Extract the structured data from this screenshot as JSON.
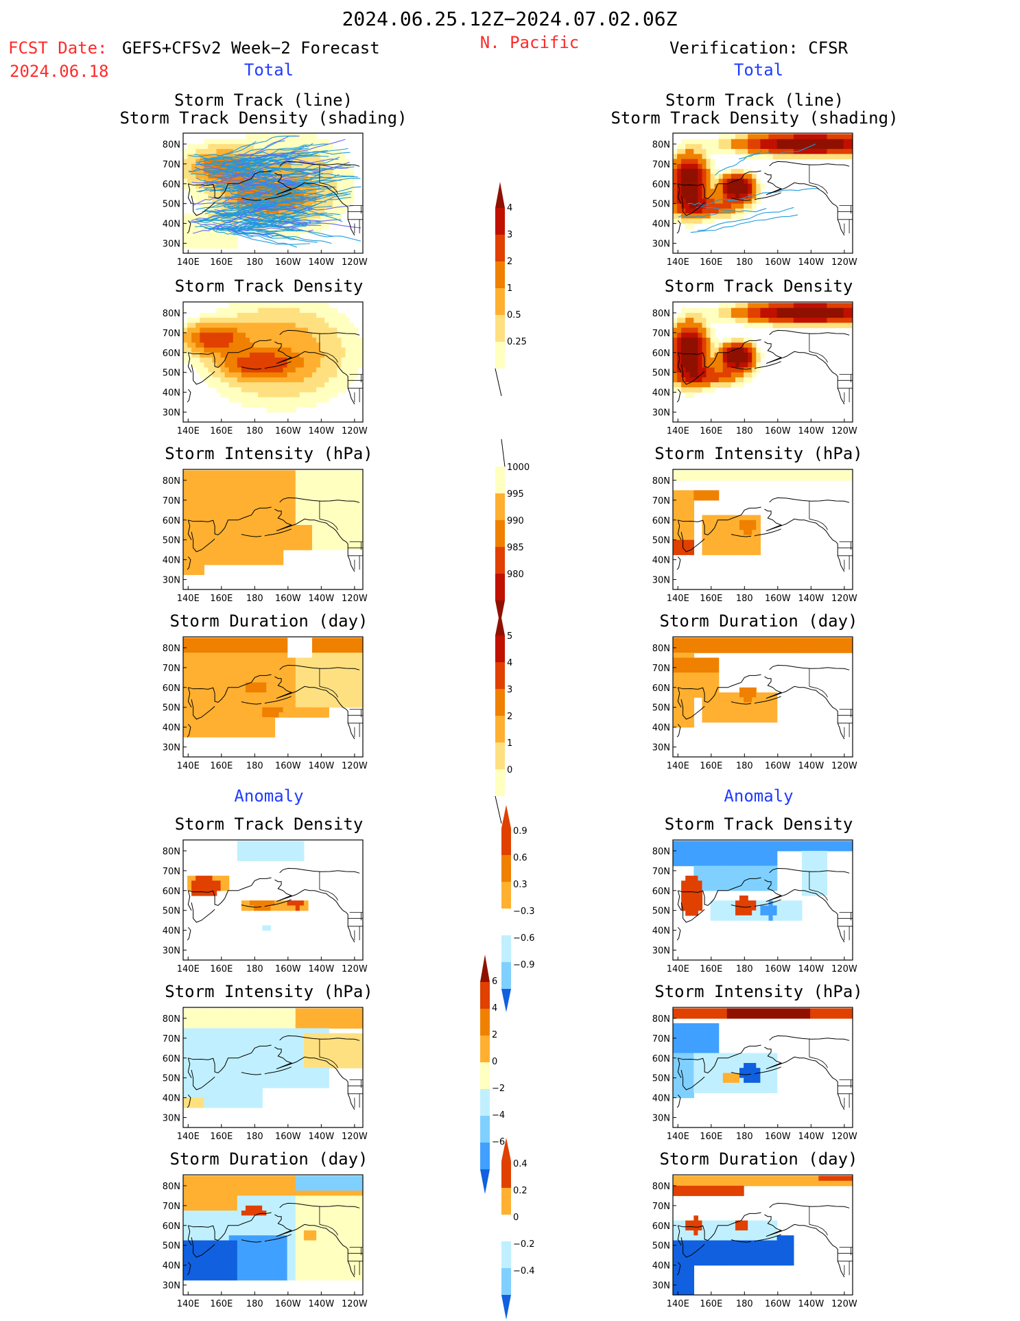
{
  "header": {
    "date_range": "2024.06.25.12Z−2024.07.02.06Z",
    "fcst_label": "FCST Date:",
    "model": "GEFS+CFSv2 Week−2 Forecast",
    "fcst_date": "2024.06.18",
    "region": "N. Pacific",
    "verification": "Verification: CFSR"
  },
  "sections": {
    "total": "Total",
    "anomaly": "Anomaly"
  },
  "axes": {
    "lat_ticks": [
      "80N",
      "70N",
      "60N",
      "50N",
      "40N",
      "30N"
    ],
    "lon_ticks": [
      "140E",
      "160E",
      "180",
      "160W",
      "140W",
      "120W"
    ]
  },
  "colors": {
    "pos": [
      "#ffffc0",
      "#ffe080",
      "#ffb030",
      "#f08000",
      "#e04000",
      "#c01000",
      "#901000"
    ],
    "neg": [
      "#c0f0ff",
      "#80d0ff",
      "#40a0ff",
      "#1060e0",
      "#0a3cc8"
    ],
    "track": "#1e9bdc",
    "track_alt": "#6464ff"
  },
  "chart_data": [
    {
      "type": "heatmap",
      "id": "fc-total-track",
      "title_line1": "Storm Track (line)",
      "title_line2": "Storm Track Density (shading)",
      "has_tracks": true
    },
    {
      "type": "heatmap",
      "id": "ver-total-track",
      "title_line1": "Storm Track (line)",
      "title_line2": "Storm Track Density (shading)",
      "has_tracks": true
    },
    {
      "type": "heatmap",
      "id": "fc-total-density",
      "title": "Storm Track Density"
    },
    {
      "type": "heatmap",
      "id": "ver-total-density",
      "title": "Storm Track Density"
    },
    {
      "type": "heatmap",
      "id": "fc-total-intensity",
      "title": "Storm Intensity (hPa)"
    },
    {
      "type": "heatmap",
      "id": "ver-total-intensity",
      "title": "Storm Intensity (hPa)"
    },
    {
      "type": "heatmap",
      "id": "fc-total-duration",
      "title": "Storm Duration (day)"
    },
    {
      "type": "heatmap",
      "id": "ver-total-duration",
      "title": "Storm Duration (day)"
    },
    {
      "type": "heatmap",
      "id": "fc-anom-density",
      "title": "Storm Track Density"
    },
    {
      "type": "heatmap",
      "id": "ver-anom-density",
      "title": "Storm Track Density"
    },
    {
      "type": "heatmap",
      "id": "fc-anom-intensity",
      "title": "Storm Intensity (hPa)"
    },
    {
      "type": "heatmap",
      "id": "ver-anom-intensity",
      "title": "Storm Intensity (hPa)"
    },
    {
      "type": "heatmap",
      "id": "fc-anom-duration",
      "title": "Storm Duration (day)"
    },
    {
      "type": "heatmap",
      "id": "ver-anom-duration",
      "title": "Storm Duration (day)"
    }
  ],
  "colorbars": {
    "density_total": [
      "0.25",
      "0.5",
      "1",
      "2",
      "3",
      "4"
    ],
    "intensity_total": [
      "1000",
      "995",
      "990",
      "985",
      "980"
    ],
    "duration_total": [
      "0",
      "1",
      "2",
      "3",
      "4",
      "5"
    ],
    "density_anom": [
      "0.9",
      "0.6",
      "0.3",
      "−0.3",
      "−0.6",
      "−0.9"
    ],
    "intensity_anom": [
      "6",
      "4",
      "2",
      "0",
      "−2",
      "−4",
      "−6"
    ],
    "duration_anom": [
      "0.4",
      "0.2",
      "0",
      "−0.2",
      "−0.4"
    ]
  }
}
